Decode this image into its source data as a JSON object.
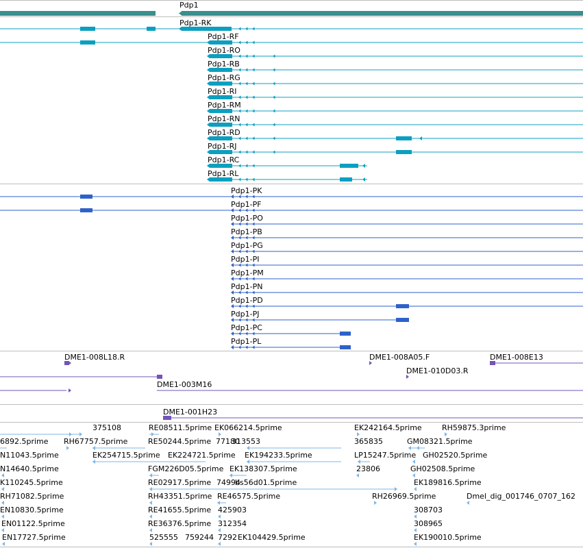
{
  "colors": {
    "gene": "#3a8e8e",
    "transcript": "#0c9fc0",
    "protein": "#2e62c9",
    "clone": "#7553b8",
    "est": "#7fb6e6",
    "separator": "#bdbdbd"
  },
  "tracks": {
    "gene": {
      "label": "Pdp1"
    },
    "transcripts": [
      "Pdp1-RK",
      "Pdp1-RF",
      "Pdp1-RO",
      "Pdp1-RB",
      "Pdp1-RG",
      "Pdp1-RI",
      "Pdp1-RM",
      "Pdp1-RN",
      "Pdp1-RD",
      "Pdp1-RJ",
      "Pdp1-RC",
      "Pdp1-RL"
    ],
    "proteins": [
      "Pdp1-PK",
      "Pdp1-PF",
      "Pdp1-PO",
      "Pdp1-PB",
      "Pdp1-PG",
      "Pdp1-PI",
      "Pdp1-PM",
      "Pdp1-PN",
      "Pdp1-PD",
      "Pdp1-PJ",
      "Pdp1-PC",
      "Pdp1-PL"
    ],
    "clones": [
      "DME1-008L18.R",
      "DME1-008A05.F",
      "DME1-008E13",
      "DME1-010D03.R",
      "DME1-003M16",
      "DME1-001H23"
    ],
    "ests": [
      "375108",
      "RE08511.5prime",
      "EK066214.5prime",
      "EK242164.5prime",
      "RH59875.3prime",
      "6892.5prime",
      "RH67757.5prime",
      "RE50244.5prime",
      "77180",
      "313553",
      "365835",
      "GM08321.5prime",
      "N11043.5prime",
      "EK254715.5prime",
      "EK224721.5prime",
      "EK194233.5prime",
      "LP15247.5prime",
      "GH02520.5prime",
      "N14640.5prime",
      "FGM226D05.5prime",
      "EK138307.5prime",
      "23806",
      "GH02508.5prime",
      "K110245.5prime",
      "RE02917.5prime",
      "74994",
      "bs56d01.5prime",
      "EK189816.5prime",
      "RH71082.5prime",
      "RH43351.5prime",
      "RE46575.5prime",
      "RH26969.5prime",
      "Dmel_dig_001746_0707_162",
      "EN10830.5prime",
      "RE41655.5prime",
      "425903",
      "308703",
      "EN01122.5prime",
      "RE36376.5prime",
      "312354",
      "308965",
      "EN17727.5prime",
      "525555",
      "759244",
      "7292",
      "EK104429.5prime",
      "EK190010.5prime"
    ]
  }
}
